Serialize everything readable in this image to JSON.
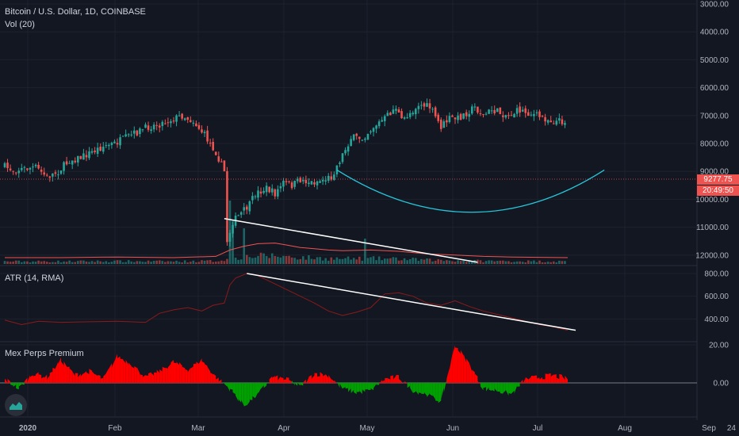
{
  "chart_title": "Bitcoin / U.S. Dollar, 1D, COINBASE",
  "volume_label": "Vol (20)",
  "atr_label": "ATR (14, RMA)",
  "premium_label": "Mex Perps Premium",
  "current_price": "9277.75",
  "countdown": "20:49:50",
  "colors": {
    "background": "#131722",
    "up": "#26a69a",
    "down": "#ef5350",
    "grid": "#1e222d",
    "text": "#b2b5be",
    "atr_line": "#8b1a1a",
    "premium_positive": "#ff0000",
    "premium_negative": "#00a000"
  },
  "chart_data": [
    {
      "type": "candlestick",
      "title": "Bitcoin / U.S. Dollar, 1D, COINBASE",
      "x_ticks": [
        "2020",
        "Feb",
        "Mar",
        "Apr",
        "May",
        "Jun",
        "Jul",
        "Aug",
        "Sep",
        "24"
      ],
      "y_ticks": [
        "3000.00",
        "4000.00",
        "5000.00",
        "6000.00",
        "7000.00",
        "8000.00",
        "9000.00",
        "10000.00",
        "11000.00",
        "12000.00"
      ],
      "close_path": [
        [
          0,
          8800
        ],
        [
          4,
          8950
        ],
        [
          8,
          8900
        ],
        [
          12,
          8850
        ],
        [
          16,
          9200
        ],
        [
          20,
          9000
        ],
        [
          24,
          8600
        ],
        [
          28,
          8500
        ],
        [
          32,
          8300
        ],
        [
          36,
          8100
        ],
        [
          40,
          8000
        ],
        [
          44,
          7800
        ],
        [
          48,
          7600
        ],
        [
          52,
          7400
        ],
        [
          56,
          7300
        ],
        [
          60,
          7150
        ],
        [
          64,
          7000
        ],
        [
          68,
          7200
        ],
        [
          72,
          7700
        ],
        [
          76,
          8300
        ],
        [
          79,
          9000
        ],
        [
          80,
          11500
        ],
        [
          82,
          10800
        ],
        [
          84,
          10600
        ],
        [
          88,
          10200
        ],
        [
          90,
          9800
        ],
        [
          94,
          9600
        ],
        [
          97,
          9800
        ],
        [
          100,
          9400
        ],
        [
          103,
          9500
        ],
        [
          106,
          9300
        ],
        [
          110,
          9400
        ],
        [
          114,
          9300
        ],
        [
          117,
          9200
        ],
        [
          120,
          8600
        ],
        [
          124,
          7800
        ],
        [
          128,
          7800
        ],
        [
          132,
          7400
        ],
        [
          136,
          7100
        ],
        [
          140,
          6700
        ],
        [
          142,
          7200
        ],
        [
          145,
          6900
        ],
        [
          148,
          6600
        ],
        [
          152,
          6700
        ],
        [
          156,
          7400
        ],
        [
          159,
          7100
        ],
        [
          162,
          7100
        ],
        [
          165,
          6900
        ],
        [
          168,
          6700
        ],
        [
          171,
          7000
        ],
        [
          174,
          6800
        ],
        [
          177,
          6900
        ],
        [
          180,
          7000
        ],
        [
          184,
          6800
        ],
        [
          187,
          6900
        ],
        [
          190,
          7000
        ],
        [
          193,
          7100
        ],
        [
          196,
          7200
        ],
        [
          200,
          7200
        ]
      ],
      "volume_ma_path": [
        [
          0,
          1.0
        ],
        [
          20,
          1.0
        ],
        [
          40,
          1.1
        ],
        [
          60,
          1.0
        ],
        [
          75,
          1.2
        ],
        [
          80,
          2.2
        ],
        [
          85,
          2.8
        ],
        [
          90,
          3.2
        ],
        [
          96,
          3.3
        ],
        [
          100,
          3.0
        ],
        [
          105,
          2.6
        ],
        [
          110,
          2.4
        ],
        [
          115,
          2.2
        ],
        [
          120,
          2.1
        ],
        [
          130,
          2.2
        ],
        [
          140,
          2.0
        ],
        [
          150,
          1.6
        ],
        [
          160,
          1.4
        ],
        [
          170,
          1.2
        ],
        [
          180,
          1.1
        ],
        [
          200,
          1.0
        ]
      ],
      "annotations": [
        {
          "type": "trendline",
          "from": [
            78,
            5.4
          ],
          "to": [
            168,
            0.2
          ]
        },
        {
          "type": "arc",
          "from": [
            118,
            8950
          ],
          "mid": [
            166,
            10700
          ],
          "to": [
            213,
            8950
          ]
        }
      ],
      "current_price": 9277.75
    },
    {
      "type": "line",
      "title": "ATR (14, RMA)",
      "y_ticks": [
        "800.00",
        "600.00",
        "400.00"
      ],
      "ylim": [
        200,
        850
      ],
      "x": [
        0,
        6,
        12,
        20,
        30,
        40,
        50,
        55,
        60,
        65,
        70,
        74,
        78,
        80,
        82,
        86,
        90,
        95,
        100,
        105,
        110,
        115,
        120,
        125,
        130,
        135,
        140,
        145,
        150,
        155,
        160,
        165,
        170,
        175,
        180,
        185,
        190,
        195,
        200
      ],
      "y": [
        390,
        350,
        380,
        370,
        375,
        380,
        370,
        450,
        480,
        500,
        470,
        520,
        540,
        700,
        760,
        800,
        780,
        720,
        660,
        600,
        540,
        470,
        430,
        460,
        500,
        620,
        630,
        600,
        540,
        520,
        560,
        510,
        470,
        440,
        410,
        380,
        350,
        330,
        300
      ],
      "annotations": [
        {
          "type": "trendline",
          "from": [
            86,
            800
          ],
          "to": [
            200,
            300
          ]
        }
      ]
    },
    {
      "type": "area",
      "title": "Mex Perps Premium",
      "y_ticks": [
        "20.00",
        "0.00"
      ],
      "ylim": [
        -15,
        22
      ],
      "x": [
        0,
        5,
        10,
        15,
        20,
        25,
        30,
        35,
        40,
        45,
        50,
        55,
        60,
        65,
        70,
        75,
        80,
        85,
        90,
        95,
        100,
        105,
        110,
        115,
        120,
        125,
        130,
        135,
        140,
        145,
        150,
        155,
        160,
        165,
        170,
        175,
        180,
        185,
        190,
        195,
        200
      ],
      "y": [
        2,
        -3,
        5,
        3,
        12,
        4,
        6,
        2,
        14,
        10,
        3,
        6,
        11,
        7,
        12,
        3,
        -3,
        -12,
        -6,
        3,
        2,
        -2,
        5,
        4,
        -3,
        -5,
        -4,
        2,
        3,
        -4,
        -6,
        -10,
        20,
        10,
        -3,
        -4,
        -6,
        2,
        3,
        4,
        2
      ]
    }
  ]
}
